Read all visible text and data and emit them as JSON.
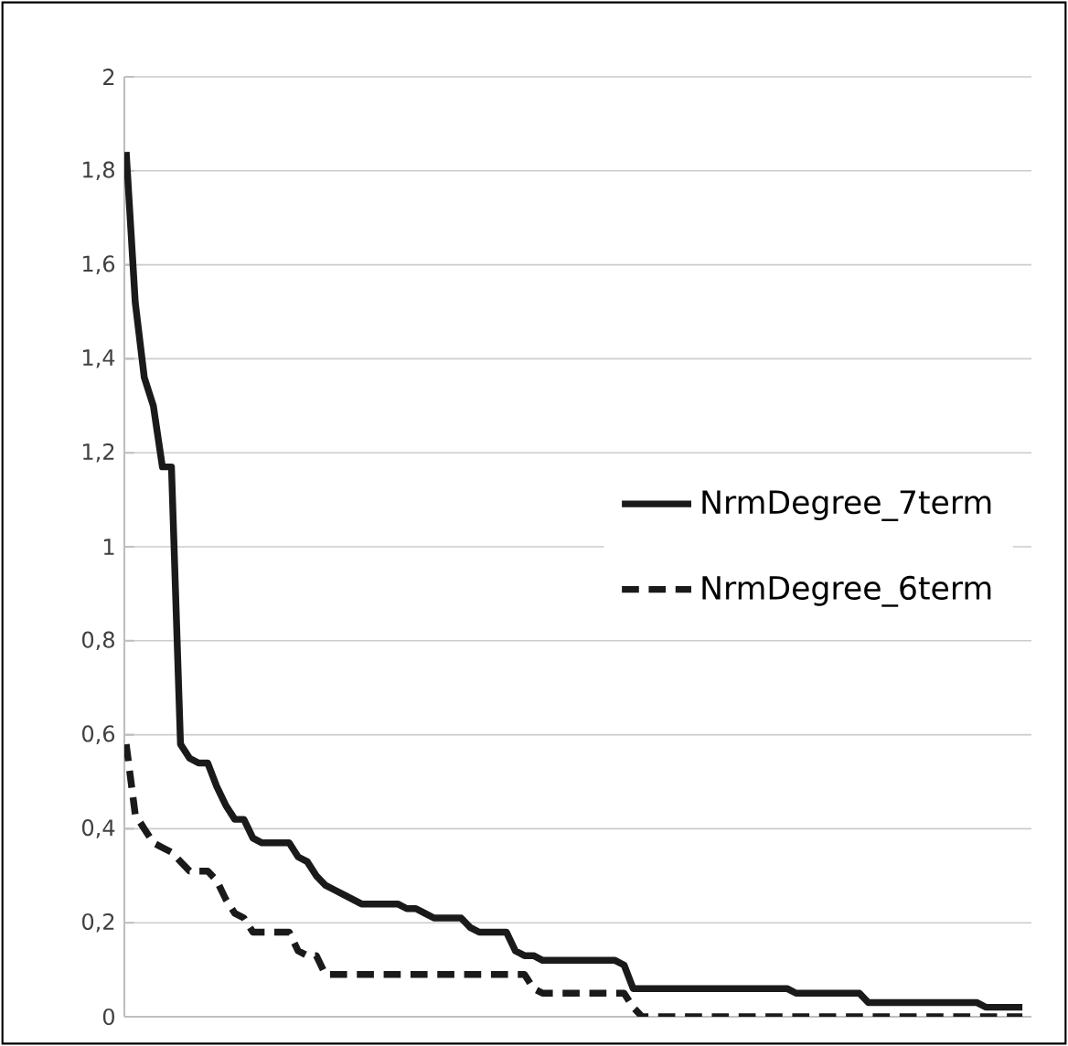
{
  "chart_data": {
    "type": "line",
    "categories": [
      null,
      null,
      null,
      null,
      null,
      null,
      null,
      null,
      null,
      null,
      null,
      null,
      null,
      null,
      null,
      null,
      null,
      null,
      null,
      null,
      null,
      null,
      null,
      null,
      null,
      null,
      null,
      null,
      null,
      null,
      null,
      null,
      null,
      null,
      null,
      null,
      null,
      null,
      null,
      null,
      null,
      null,
      null,
      null,
      null,
      null,
      null,
      null,
      null,
      null,
      null,
      null,
      null,
      null,
      null,
      null,
      null,
      null,
      null,
      null,
      null,
      null,
      null,
      null,
      null,
      null,
      null,
      null,
      null,
      null,
      null,
      null,
      null,
      null,
      null,
      null,
      null,
      null,
      null,
      null,
      null,
      null,
      null,
      null,
      null,
      null,
      null,
      null,
      null,
      null,
      null,
      null,
      null,
      null,
      null,
      null,
      null,
      null,
      null,
      null
    ],
    "series": [
      {
        "name": "NrmDegree_7term",
        "color": "#1a1a1a",
        "line_style": "solid",
        "values": [
          1.84,
          1.52,
          1.36,
          1.3,
          1.17,
          1.17,
          0.58,
          0.55,
          0.54,
          0.54,
          0.49,
          0.45,
          0.42,
          0.42,
          0.38,
          0.37,
          0.37,
          0.37,
          0.37,
          0.34,
          0.33,
          0.3,
          0.28,
          0.27,
          0.26,
          0.25,
          0.24,
          0.24,
          0.24,
          0.24,
          0.24,
          0.23,
          0.23,
          0.22,
          0.21,
          0.21,
          0.21,
          0.21,
          0.19,
          0.18,
          0.18,
          0.18,
          0.18,
          0.14,
          0.13,
          0.13,
          0.12,
          0.12,
          0.12,
          0.12,
          0.12,
          0.12,
          0.12,
          0.12,
          0.12,
          0.11,
          0.06,
          0.06,
          0.06,
          0.06,
          0.06,
          0.06,
          0.06,
          0.06,
          0.06,
          0.06,
          0.06,
          0.06,
          0.06,
          0.06,
          0.06,
          0.06,
          0.06,
          0.06,
          0.05,
          0.05,
          0.05,
          0.05,
          0.05,
          0.05,
          0.05,
          0.05,
          0.03,
          0.03,
          0.03,
          0.03,
          0.03,
          0.03,
          0.03,
          0.03,
          0.03,
          0.03,
          0.03,
          0.03,
          0.03,
          0.02,
          0.02,
          0.02,
          0.02,
          0.02
        ]
      },
      {
        "name": "NrmDegree_6term",
        "color": "#1a1a1a",
        "line_style": "dashed",
        "values": [
          0.58,
          0.43,
          0.4,
          0.37,
          0.36,
          0.35,
          0.33,
          0.31,
          0.31,
          0.31,
          0.29,
          0.25,
          0.22,
          0.21,
          0.18,
          0.18,
          0.18,
          0.18,
          0.18,
          0.14,
          0.13,
          0.13,
          0.09,
          0.09,
          0.09,
          0.09,
          0.09,
          0.09,
          0.09,
          0.09,
          0.09,
          0.09,
          0.09,
          0.09,
          0.09,
          0.09,
          0.09,
          0.09,
          0.09,
          0.09,
          0.09,
          0.09,
          0.09,
          0.09,
          0.09,
          0.06,
          0.05,
          0.05,
          0.05,
          0.05,
          0.05,
          0.05,
          0.05,
          0.05,
          0.05,
          0.05,
          0.02,
          0,
          0,
          0,
          0,
          0,
          0,
          0,
          0,
          0,
          0,
          0,
          0,
          0,
          0,
          0,
          0,
          0,
          0,
          0,
          0,
          0,
          0,
          0,
          0,
          0,
          0,
          0,
          0,
          0,
          0,
          0,
          0,
          0,
          0,
          0,
          0,
          0,
          0,
          0,
          0,
          0,
          0,
          0
        ]
      }
    ],
    "ylim": [
      0,
      2
    ],
    "yticks": [
      0,
      {
        "value": 0.2,
        "label": "0,2"
      },
      {
        "value": 0.4,
        "label": "0,4"
      },
      {
        "value": 0.6,
        "label": "0,6"
      },
      {
        "value": 0.8,
        "label": "0,8"
      },
      1,
      {
        "value": 1.2,
        "label": "1,2"
      },
      {
        "value": 1.4,
        "label": "1,4"
      },
      {
        "value": 1.6,
        "label": "1,6"
      },
      {
        "value": 1.8,
        "label": "1,8"
      },
      2
    ],
    "grid": "y",
    "legend": "right",
    "tick_labels": "y",
    "marker": "none"
  }
}
